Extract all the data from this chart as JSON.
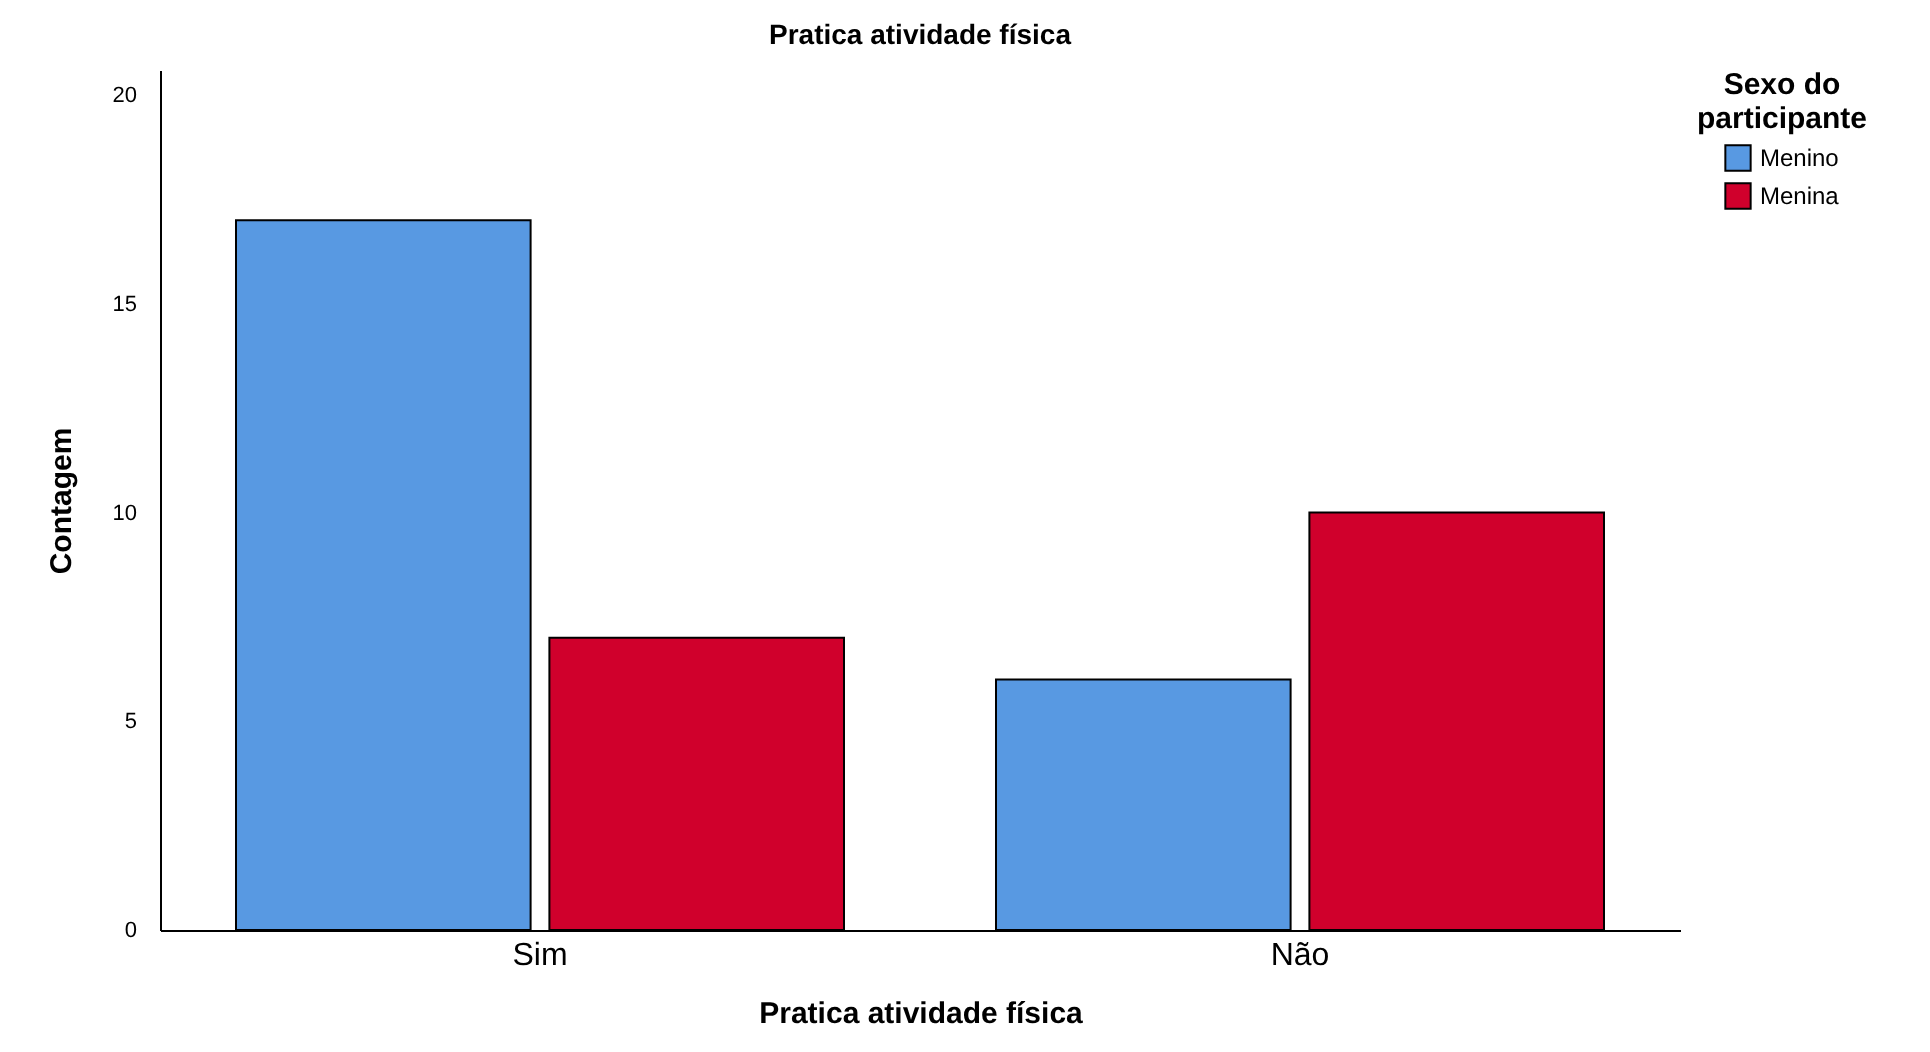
{
  "chart_data": {
    "type": "bar",
    "title": "Pratica atividade física",
    "xlabel": "Pratica atividade física",
    "ylabel": "Contagem",
    "legend_title": "Sexo do participante",
    "legend": "top right",
    "grid": false,
    "categories": [
      "Sim",
      "Não"
    ],
    "series": [
      {
        "name": "Menino",
        "color": "#5899e2",
        "values": [
          17,
          6
        ]
      },
      {
        "name": "Menina",
        "color": "#d0002c",
        "values": [
          7,
          10
        ]
      }
    ],
    "ylim": [
      0,
      20.6
    ],
    "yticks": [
      0,
      5,
      10,
      15,
      20
    ]
  }
}
